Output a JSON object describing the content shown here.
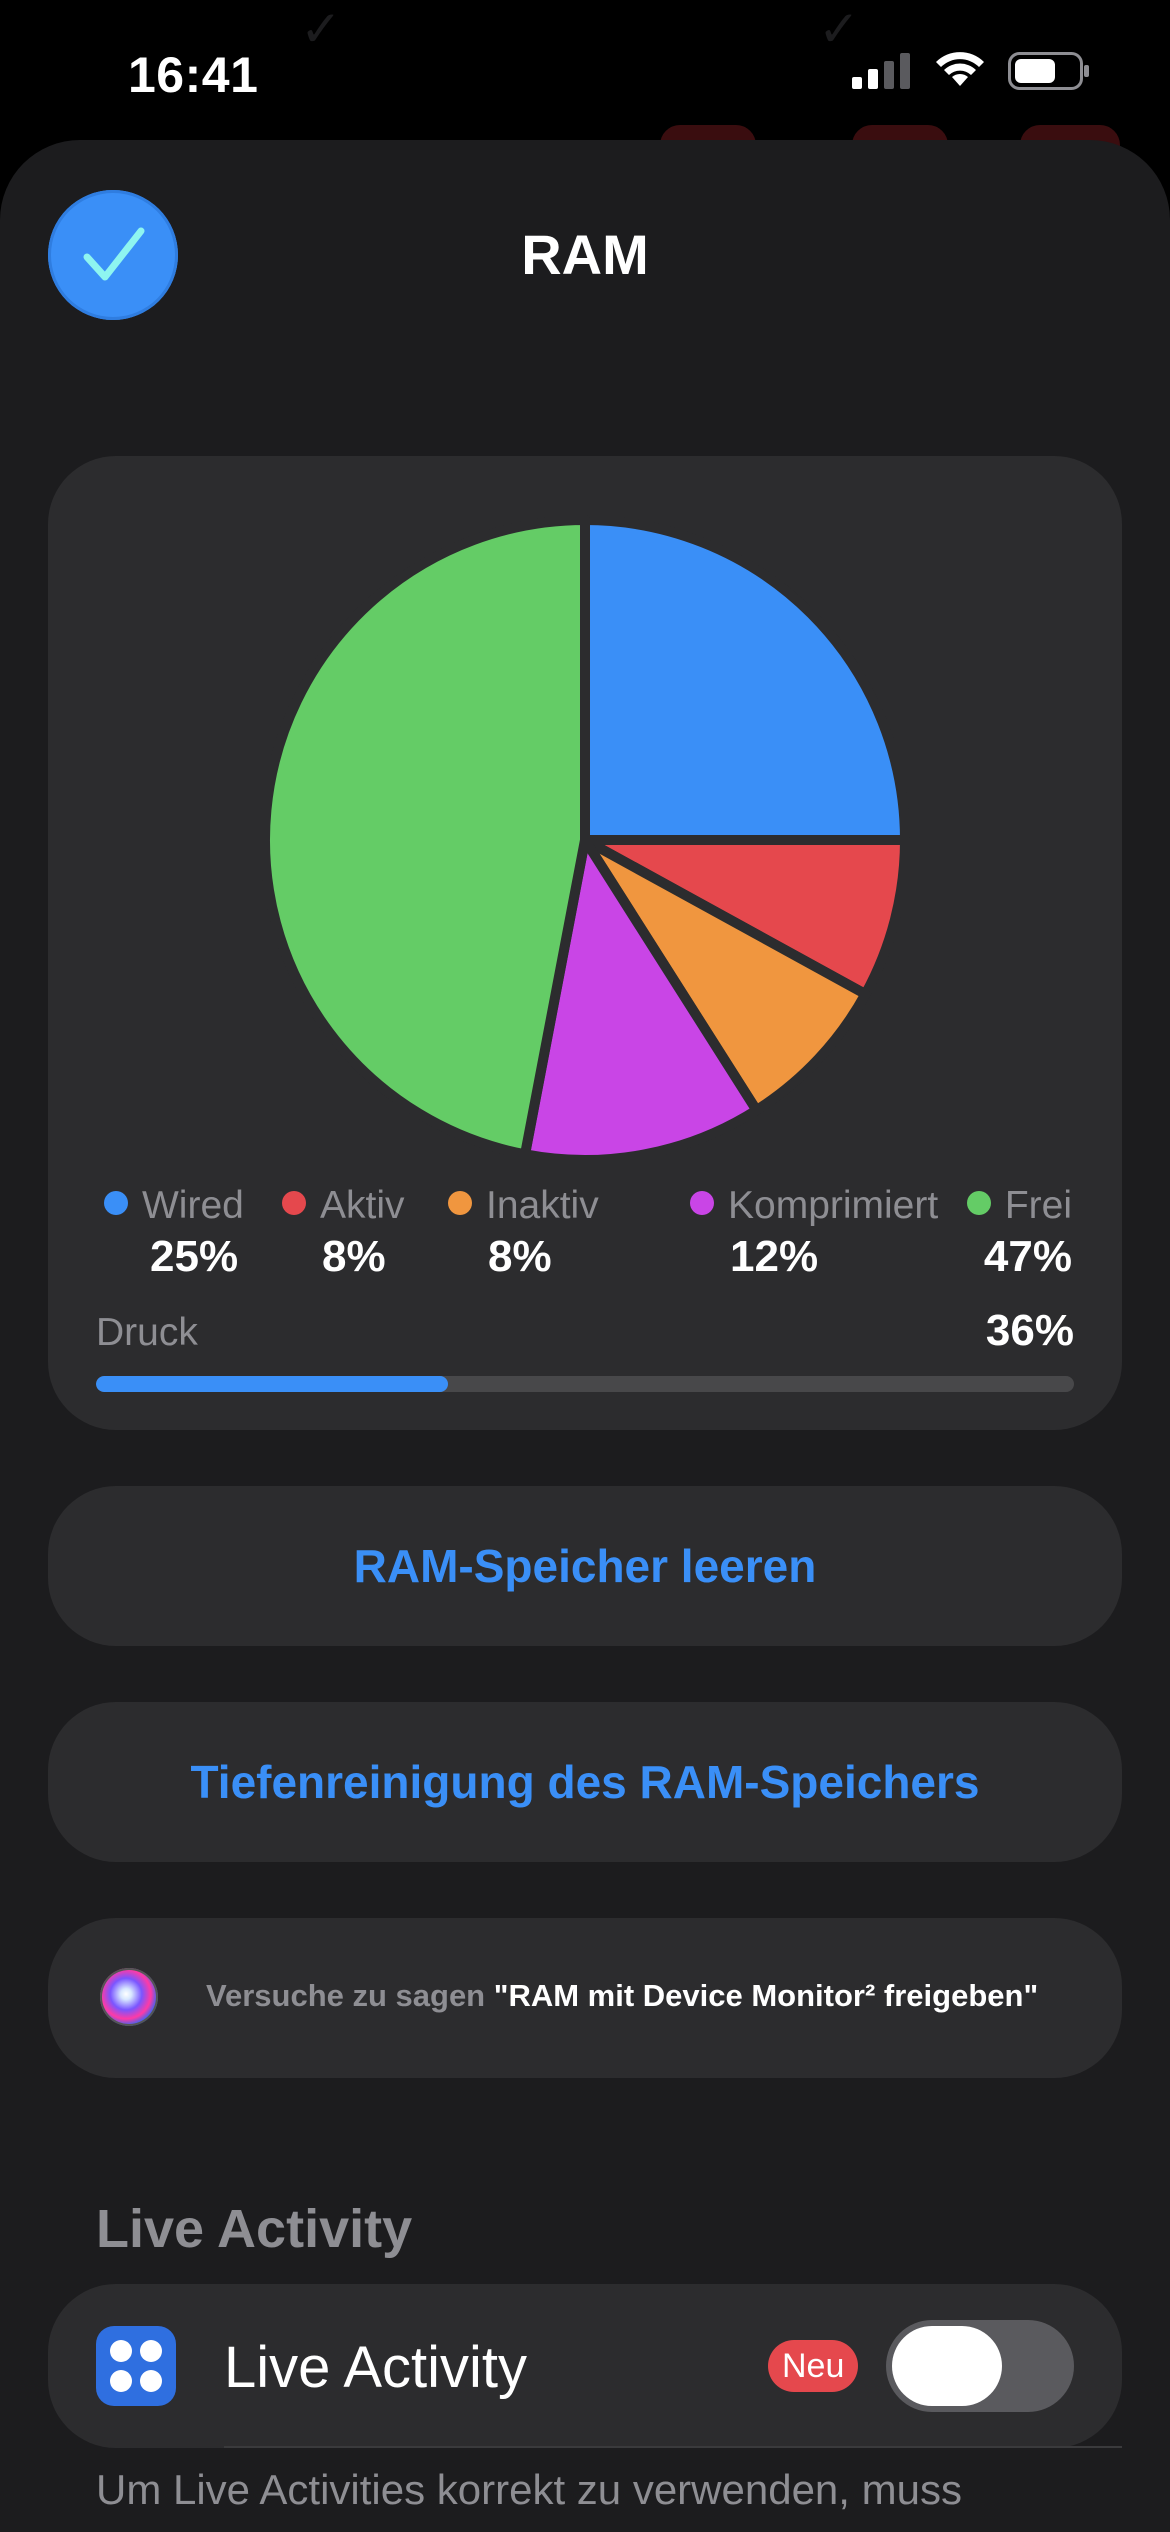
{
  "status_bar": {
    "time": "16:41",
    "icons": [
      "cellular-signal-icon",
      "wifi-icon",
      "battery-icon"
    ]
  },
  "header": {
    "title": "RAM",
    "done_icon": "checkmark-icon"
  },
  "chart_data": {
    "type": "pie",
    "categories": [
      "Wired",
      "Aktiv",
      "Inaktiv",
      "Komprimiert",
      "Frei"
    ],
    "values": [
      25,
      8,
      8,
      12,
      47
    ],
    "colors": [
      "#3a8ff7",
      "#e5484d",
      "#f0963f",
      "#c945e6",
      "#64cc66"
    ],
    "percent_labels": [
      "25%",
      "8%",
      "8%",
      "12%",
      "47%"
    ]
  },
  "pressure": {
    "label": "Druck",
    "value_text": "36%",
    "value": 0.36
  },
  "actions": {
    "clear_ram": "RAM-Speicher leeren",
    "deep_clean": "Tiefenreinigung des RAM-Speichers"
  },
  "siri": {
    "prefix": "Versuche zu sagen",
    "phrase": "\"RAM mit Device Monitor² freigeben\""
  },
  "live_activity": {
    "section_title": "Live Activity",
    "row_label": "Live Activity",
    "badge": "Neu",
    "toggle_on": false
  },
  "footnote": "Um Live Activities korrekt zu verwenden, muss"
}
